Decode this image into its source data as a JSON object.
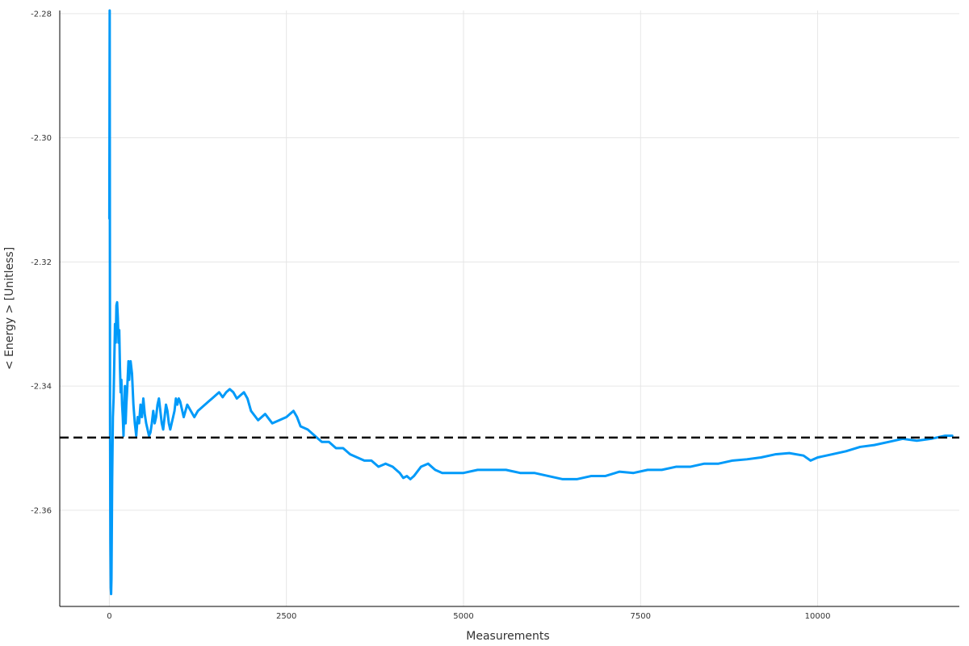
{
  "chart_data": {
    "type": "line",
    "title": "",
    "xlabel": "Measurements",
    "ylabel": "< Energy > [Unitless]",
    "xlim": [
      -700,
      12000
    ],
    "ylim": [
      -2.3755,
      -2.2795
    ],
    "x_ticks": [
      0,
      2500,
      5000,
      7500,
      10000
    ],
    "x_tick_labels": [
      "0",
      "2500",
      "5000",
      "7500",
      "10000"
    ],
    "y_ticks": [
      -2.28,
      -2.3,
      -2.32,
      -2.34,
      -2.36
    ],
    "y_tick_labels": [
      "-2.28",
      "-2.30",
      "-2.32",
      "-2.34",
      "-2.36"
    ],
    "grid": true,
    "legend": "none",
    "series": [
      {
        "color": "#009af9",
        "x": [
          0,
          5,
          10,
          15,
          20,
          25,
          30,
          40,
          50,
          60,
          70,
          80,
          90,
          100,
          110,
          120,
          130,
          140,
          150,
          160,
          170,
          180,
          190,
          200,
          210,
          220,
          230,
          240,
          250,
          260,
          270,
          280,
          290,
          300,
          320,
          340,
          360,
          380,
          400,
          420,
          440,
          460,
          480,
          500,
          520,
          540,
          560,
          580,
          600,
          620,
          640,
          660,
          680,
          700,
          720,
          740,
          760,
          780,
          800,
          820,
          840,
          860,
          880,
          900,
          920,
          940,
          960,
          980,
          1000,
          1050,
          1100,
          1150,
          1200,
          1250,
          1300,
          1350,
          1400,
          1450,
          1500,
          1550,
          1600,
          1650,
          1700,
          1750,
          1800,
          1850,
          1900,
          1950,
          2000,
          2100,
          2200,
          2300,
          2400,
          2500,
          2600,
          2650,
          2700,
          2800,
          2900,
          3000,
          3100,
          3200,
          3300,
          3400,
          3500,
          3600,
          3700,
          3800,
          3900,
          4000,
          4100,
          4150,
          4200,
          4250,
          4300,
          4400,
          4500,
          4600,
          4700,
          4800,
          4900,
          5000,
          5200,
          5400,
          5600,
          5800,
          6000,
          6200,
          6400,
          6600,
          6800,
          7000,
          7200,
          7400,
          7600,
          7800,
          8000,
          8200,
          8400,
          8600,
          8800,
          9000,
          9200,
          9400,
          9600,
          9800,
          9900,
          10000,
          10200,
          10400,
          10600,
          10800,
          11000,
          11200,
          11400,
          11600,
          11800,
          11900
        ],
        "y": [
          -2.313,
          -2.2755,
          -2.345,
          -2.365,
          -2.3725,
          -2.3735,
          -2.371,
          -2.355,
          -2.345,
          -2.342,
          -2.336,
          -2.33,
          -2.333,
          -2.327,
          -2.3265,
          -2.329,
          -2.333,
          -2.331,
          -2.337,
          -2.341,
          -2.339,
          -2.343,
          -2.345,
          -2.348,
          -2.344,
          -2.34,
          -2.346,
          -2.343,
          -2.341,
          -2.3385,
          -2.336,
          -2.339,
          -2.337,
          -2.336,
          -2.338,
          -2.343,
          -2.346,
          -2.348,
          -2.345,
          -2.346,
          -2.343,
          -2.345,
          -2.342,
          -2.3445,
          -2.346,
          -2.347,
          -2.348,
          -2.3475,
          -2.346,
          -2.344,
          -2.346,
          -2.345,
          -2.343,
          -2.342,
          -2.344,
          -2.346,
          -2.347,
          -2.345,
          -2.343,
          -2.344,
          -2.346,
          -2.347,
          -2.346,
          -2.345,
          -2.344,
          -2.342,
          -2.343,
          -2.342,
          -2.3425,
          -2.345,
          -2.343,
          -2.344,
          -2.345,
          -2.344,
          -2.3435,
          -2.343,
          -2.3425,
          -2.342,
          -2.3415,
          -2.341,
          -2.3418,
          -2.341,
          -2.3405,
          -2.341,
          -2.342,
          -2.3415,
          -2.341,
          -2.342,
          -2.344,
          -2.3455,
          -2.3445,
          -2.346,
          -2.3455,
          -2.345,
          -2.344,
          -2.345,
          -2.3465,
          -2.347,
          -2.348,
          -2.349,
          -2.349,
          -2.35,
          -2.35,
          -2.351,
          -2.3515,
          -2.352,
          -2.352,
          -2.353,
          -2.3525,
          -2.353,
          -2.354,
          -2.3548,
          -2.3545,
          -2.355,
          -2.3545,
          -2.353,
          -2.3525,
          -2.3535,
          -2.354,
          -2.354,
          -2.354,
          -2.354,
          -2.3535,
          -2.3535,
          -2.3535,
          -2.354,
          -2.354,
          -2.3545,
          -2.355,
          -2.355,
          -2.3545,
          -2.3545,
          -2.3538,
          -2.354,
          -2.3535,
          -2.3535,
          -2.353,
          -2.353,
          -2.3525,
          -2.3525,
          -2.352,
          -2.3518,
          -2.3515,
          -2.351,
          -2.3508,
          -2.3512,
          -2.352,
          -2.3515,
          -2.351,
          -2.3505,
          -2.3498,
          -2.3495,
          -2.349,
          -2.3485,
          -2.3488,
          -2.3485,
          -2.348,
          -2.348
        ]
      }
    ],
    "reference_line": {
      "y": -2.3483,
      "color": "#000000",
      "style": "dashed"
    }
  }
}
